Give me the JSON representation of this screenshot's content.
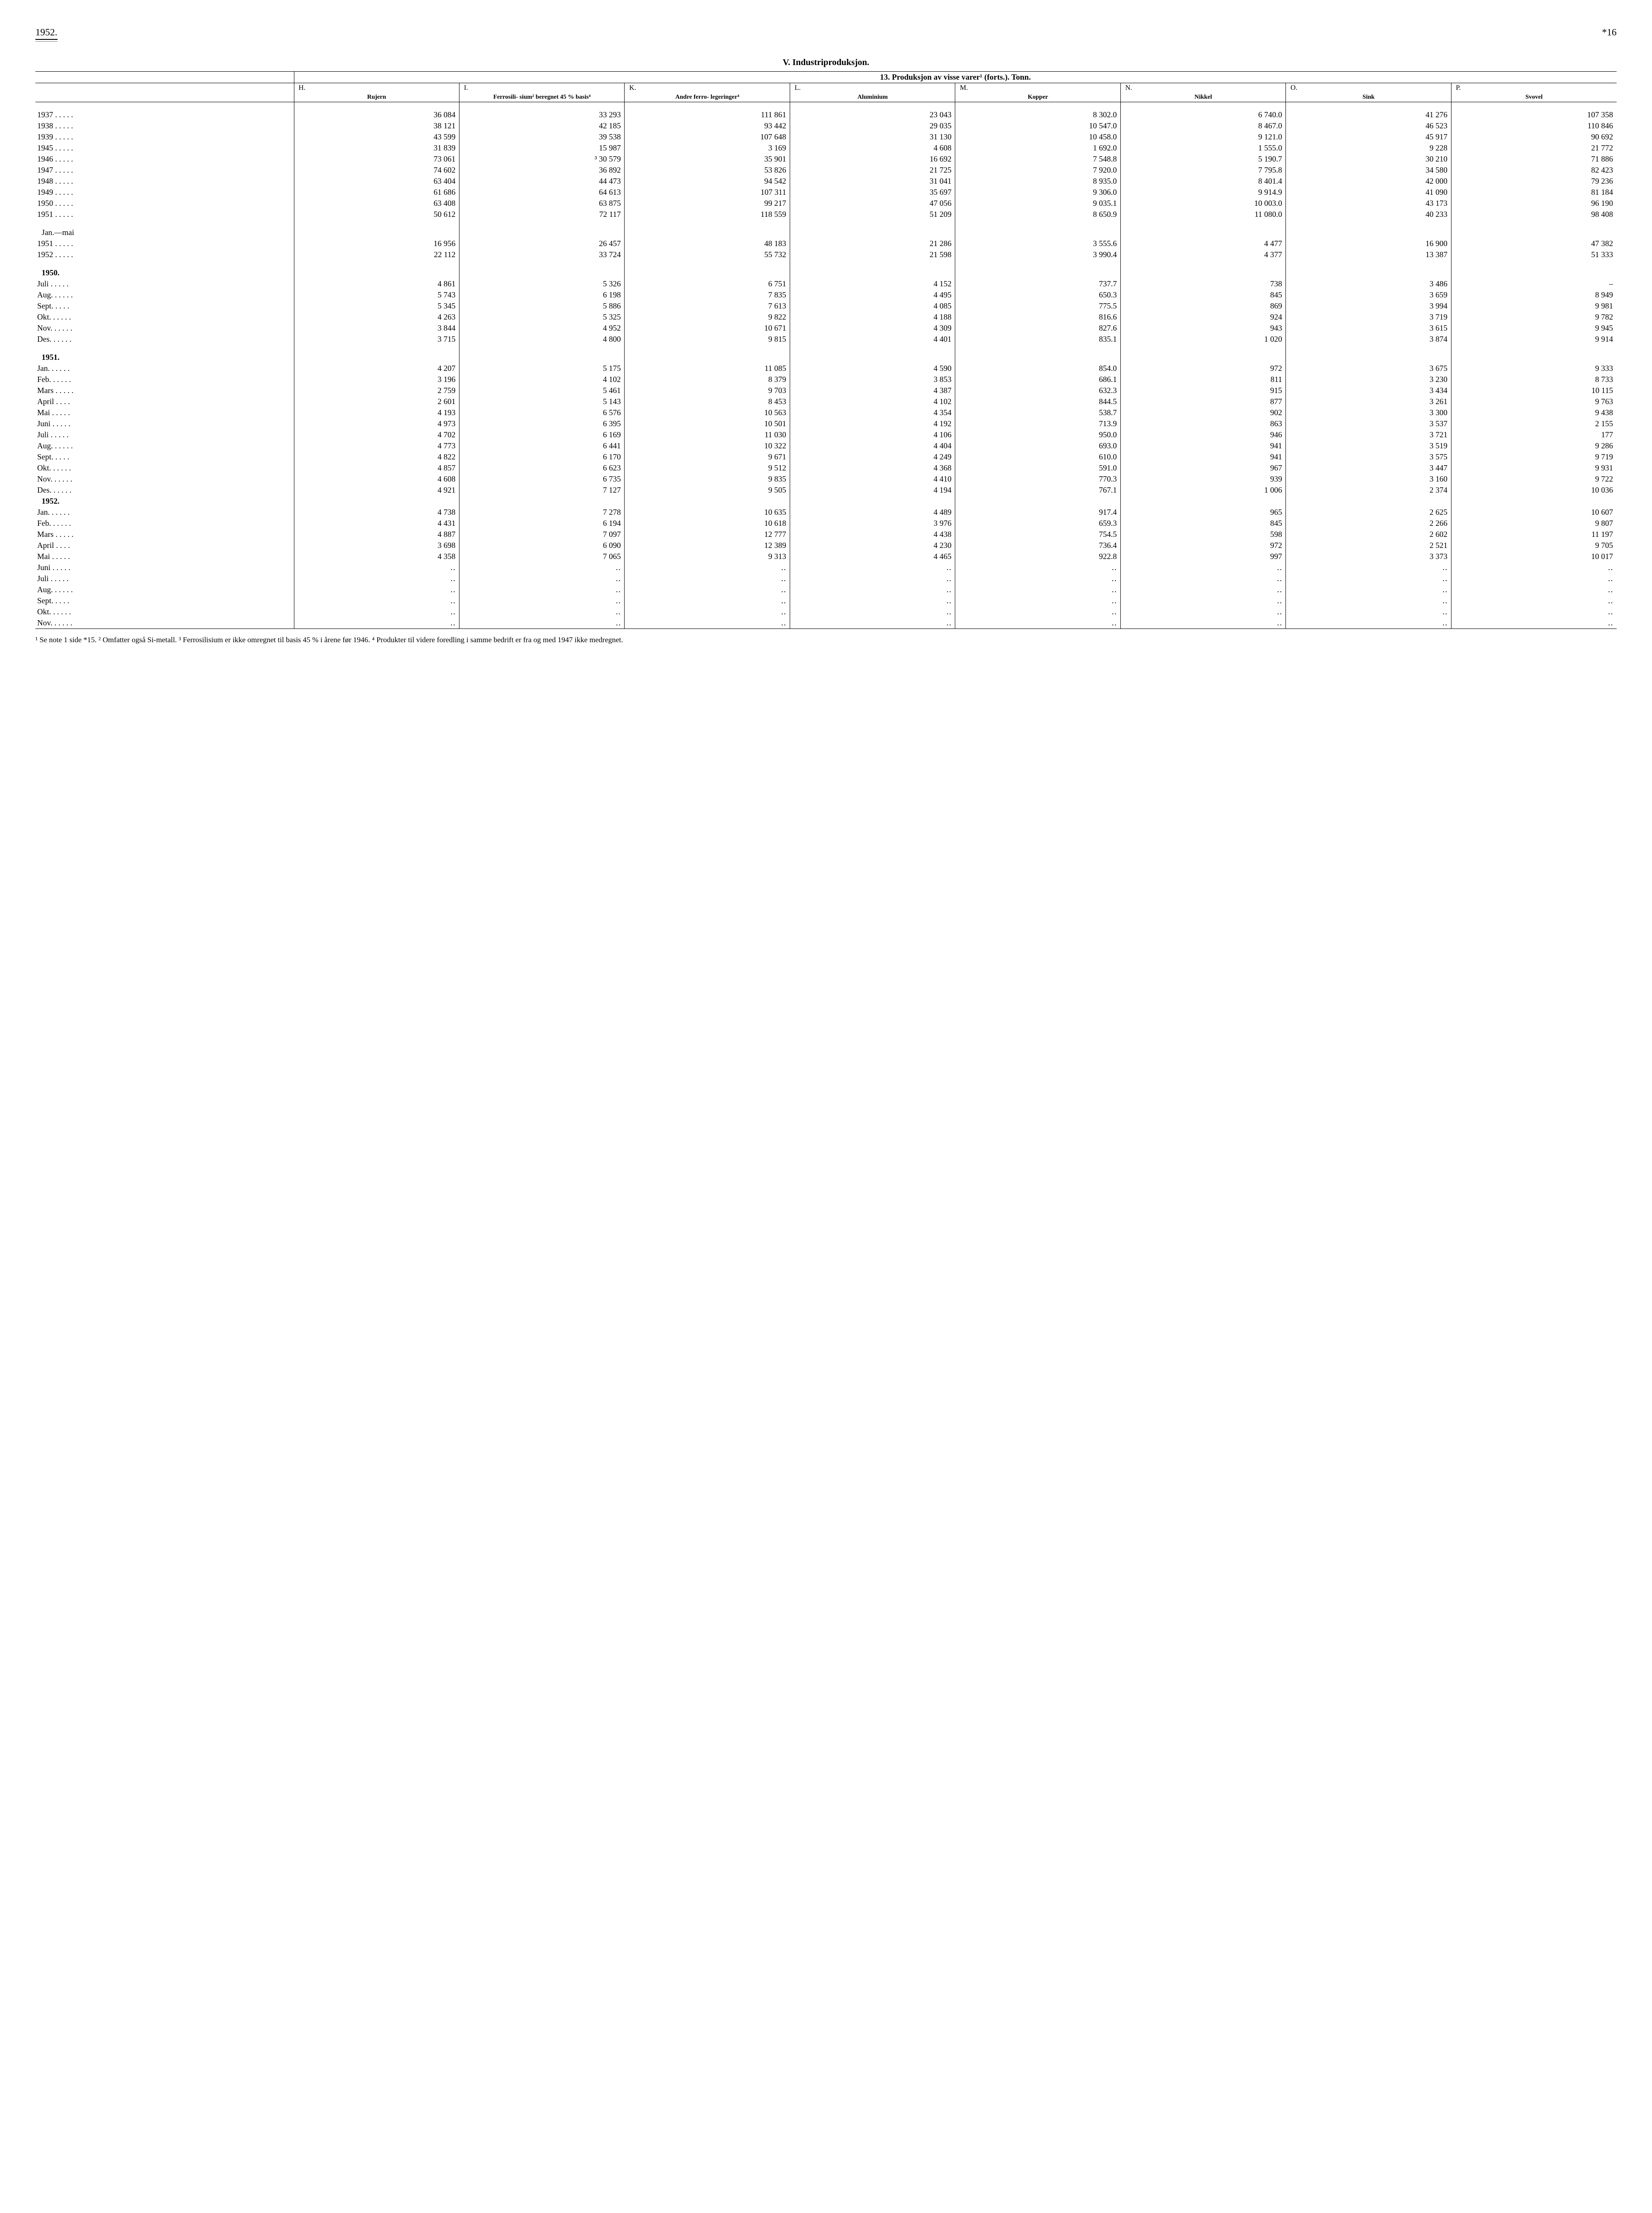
{
  "header": {
    "year": "1952.",
    "pagenum": "*16"
  },
  "section_title": "V.  Industriproduksjon.",
  "table_caption": "13.  Produksjon av visse varer¹ (forts.).  Tonn.",
  "columns": [
    {
      "letter": "H.",
      "desc": "Rujern"
    },
    {
      "letter": "I.",
      "desc": "Ferrosili-\nsium²\nberegnet\n45 % basis⁴"
    },
    {
      "letter": "K.",
      "desc": "Andre ferro-\nlegeringer⁴"
    },
    {
      "letter": "L.",
      "desc": "Aluminium"
    },
    {
      "letter": "M.",
      "desc": "Kopper"
    },
    {
      "letter": "N.",
      "desc": "Nikkel"
    },
    {
      "letter": "O.",
      "desc": "Sink"
    },
    {
      "letter": "P.",
      "desc": "Svovel"
    }
  ],
  "annual": [
    {
      "y": "1937",
      "v": [
        "36 084",
        "33 293",
        "111 861",
        "23 043",
        "8 302.0",
        "6 740.0",
        "41 276",
        "107 358"
      ]
    },
    {
      "y": "1938",
      "v": [
        "38 121",
        "42 185",
        "93 442",
        "29 035",
        "10 547.0",
        "8 467.0",
        "46 523",
        "110 846"
      ]
    },
    {
      "y": "1939",
      "v": [
        "43 599",
        "39 538",
        "107 648",
        "31 130",
        "10 458.0",
        "9 121.0",
        "45 917",
        "90 692"
      ]
    },
    {
      "y": "1945",
      "v": [
        "31 839",
        "15 987",
        "3 169",
        "4 608",
        "1 692.0",
        "1 555.0",
        "9 228",
        "21 772"
      ]
    },
    {
      "y": "1946",
      "v": [
        "73 061",
        "³ 30 579",
        "35 901",
        "16 692",
        "7 548.8",
        "5 190.7",
        "30 210",
        "71 886"
      ]
    },
    {
      "y": "1947",
      "v": [
        "74 602",
        "36 892",
        "53 826",
        "21 725",
        "7 920.0",
        "7 795.8",
        "34 580",
        "82 423"
      ]
    },
    {
      "y": "1948",
      "v": [
        "63 404",
        "44 473",
        "94 542",
        "31 041",
        "8 935.0",
        "8 401.4",
        "42 000",
        "79 236"
      ]
    },
    {
      "y": "1949",
      "v": [
        "61 686",
        "64 613",
        "107 311",
        "35 697",
        "9 306.0",
        "9 914.9",
        "41 090",
        "81 184"
      ]
    },
    {
      "y": "1950",
      "v": [
        "63 408",
        "63 875",
        "99 217",
        "47 056",
        "9 035.1",
        "10 003.0",
        "43 173",
        "96 190"
      ]
    },
    {
      "y": "1951",
      "v": [
        "50 612",
        "72 117",
        "118 559",
        "51 209",
        "8 650.9",
        "11 080.0",
        "40 233",
        "98 408"
      ]
    }
  ],
  "janmai_label": "Jan.—mai",
  "janmai": [
    {
      "y": "1951",
      "v": [
        "16 956",
        "26 457",
        "48 183",
        "21 286",
        "3 555.6",
        "4 477",
        "16 900",
        "47 382"
      ]
    },
    {
      "y": "1952",
      "v": [
        "22 112",
        "33 724",
        "55 732",
        "21 598",
        "3 990.4",
        "4 377",
        "13 387",
        "51 333"
      ]
    }
  ],
  "y1950_label": "1950.",
  "y1950": [
    {
      "m": "Juli",
      "v": [
        "4 861",
        "5 326",
        "6 751",
        "4 152",
        "737.7",
        "738",
        "3 486",
        "–"
      ]
    },
    {
      "m": "Aug.",
      "v": [
        "5 743",
        "6 198",
        "7 835",
        "4 495",
        "650.3",
        "845",
        "3 659",
        "8 949"
      ]
    },
    {
      "m": "Sept.",
      "v": [
        "5 345",
        "5 886",
        "7 613",
        "4 085",
        "775.5",
        "869",
        "3 994",
        "9 981"
      ]
    },
    {
      "m": "Okt.",
      "v": [
        "4 263",
        "5 325",
        "9 822",
        "4 188",
        "816.6",
        "924",
        "3 719",
        "9 782"
      ]
    },
    {
      "m": "Nov.",
      "v": [
        "3 844",
        "4 952",
        "10 671",
        "4 309",
        "827.6",
        "943",
        "3 615",
        "9 945"
      ]
    },
    {
      "m": "Des.",
      "v": [
        "3 715",
        "4 800",
        "9 815",
        "4 401",
        "835.1",
        "1 020",
        "3 874",
        "9 914"
      ]
    }
  ],
  "y1951_label": "1951.",
  "y1951": [
    {
      "m": "Jan.",
      "v": [
        "4 207",
        "5 175",
        "11 085",
        "4 590",
        "854.0",
        "972",
        "3 675",
        "9 333"
      ]
    },
    {
      "m": "Feb.",
      "v": [
        "3 196",
        "4 102",
        "8 379",
        "3 853",
        "686.1",
        "811",
        "3 230",
        "8 733"
      ]
    },
    {
      "m": "Mars",
      "v": [
        "2 759",
        "5 461",
        "9 703",
        "4 387",
        "632.3",
        "915",
        "3 434",
        "10 115"
      ]
    },
    {
      "m": "April",
      "v": [
        "2 601",
        "5 143",
        "8 453",
        "4 102",
        "844.5",
        "877",
        "3 261",
        "9 763"
      ]
    },
    {
      "m": "Mai",
      "v": [
        "4 193",
        "6 576",
        "10 563",
        "4 354",
        "538.7",
        "902",
        "3 300",
        "9 438"
      ]
    },
    {
      "m": "Juni",
      "v": [
        "4 973",
        "6 395",
        "10 501",
        "4 192",
        "713.9",
        "863",
        "3 537",
        "2 155"
      ]
    },
    {
      "m": "Juli",
      "v": [
        "4 702",
        "6 169",
        "11 030",
        "4 106",
        "950.0",
        "946",
        "3 721",
        "177"
      ]
    },
    {
      "m": "Aug.",
      "v": [
        "4 773",
        "6 441",
        "10 322",
        "4 404",
        "693.0",
        "941",
        "3 519",
        "9 286"
      ]
    },
    {
      "m": "Sept.",
      "v": [
        "4 822",
        "6 170",
        "9 671",
        "4 249",
        "610.0",
        "941",
        "3 575",
        "9 719"
      ]
    },
    {
      "m": "Okt.",
      "v": [
        "4 857",
        "6 623",
        "9 512",
        "4 368",
        "591.0",
        "967",
        "3 447",
        "9 931"
      ]
    },
    {
      "m": "Nov.",
      "v": [
        "4 608",
        "6 735",
        "9 835",
        "4 410",
        "770.3",
        "939",
        "3 160",
        "9 722"
      ]
    },
    {
      "m": "Des.",
      "v": [
        "4 921",
        "7 127",
        "9 505",
        "4 194",
        "767.1",
        "1 006",
        "2 374",
        "10 036"
      ]
    }
  ],
  "y1952_label": "1952.",
  "y1952": [
    {
      "m": "Jan.",
      "v": [
        "4 738",
        "7 278",
        "10 635",
        "4 489",
        "917.4",
        "965",
        "2 625",
        "10 607"
      ]
    },
    {
      "m": "Feb.",
      "v": [
        "4 431",
        "6 194",
        "10 618",
        "3 976",
        "659.3",
        "845",
        "2 266",
        "9 807"
      ]
    },
    {
      "m": "Mars",
      "v": [
        "4 887",
        "7 097",
        "12 777",
        "4 438",
        "754.5",
        "598",
        "2 602",
        "11 197"
      ]
    },
    {
      "m": "April",
      "v": [
        "3 698",
        "6 090",
        "12 389",
        "4 230",
        "736.4",
        "972",
        "2 521",
        "9 705"
      ]
    },
    {
      "m": "Mai",
      "v": [
        "4 358",
        "7 065",
        "9 313",
        "4 465",
        "922.8",
        "997",
        "3 373",
        "10 017"
      ]
    },
    {
      "m": "Juni",
      "v": [
        "‥",
        "‥",
        "‥",
        "‥",
        "‥",
        "‥",
        "‥",
        "‥"
      ]
    },
    {
      "m": "Juli",
      "v": [
        "‥",
        "‥",
        "‥",
        "‥",
        "‥",
        "‥",
        "‥",
        "‥"
      ]
    },
    {
      "m": "Aug.",
      "v": [
        "‥",
        "‥",
        "‥",
        "‥",
        "‥",
        "‥",
        "‥",
        "‥"
      ]
    },
    {
      "m": "Sept.",
      "v": [
        "‥",
        "‥",
        "‥",
        "‥",
        "‥",
        "‥",
        "‥",
        "‥"
      ]
    },
    {
      "m": "Okt.",
      "v": [
        "‥",
        "‥",
        "‥",
        "‥",
        "‥",
        "‥",
        "‥",
        "‥"
      ]
    },
    {
      "m": "Nov.",
      "v": [
        "‥",
        "‥",
        "‥",
        "‥",
        "‥",
        "‥",
        "‥",
        "‥"
      ]
    }
  ],
  "footnotes": "¹ Se note 1 side *15.   ² Omfatter også Si-metall.   ³ Ferrosilisium er ikke omregnet til basis 45 % i årene før 1946.   ⁴ Produkter til videre foredling i samme bedrift er fra og med 1947 ikke medregnet."
}
